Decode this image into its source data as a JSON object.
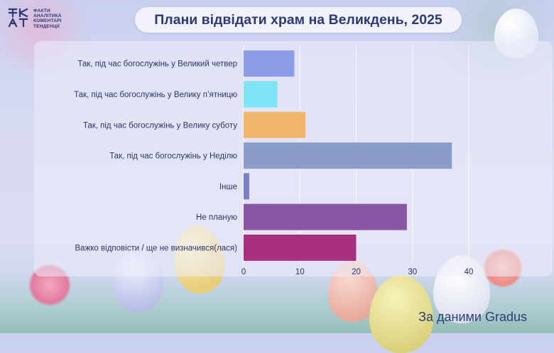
{
  "logo": {
    "mark": "ФАКТ",
    "lines": [
      "ФАКТИ",
      "АНАЛІТИКА",
      "КОМЕНТАРІ",
      "ТЕНДЕНЦІЇ"
    ]
  },
  "chart_data": {
    "type": "bar",
    "orientation": "horizontal",
    "title": "Плани відвідати храм на Великдень, 2025",
    "categories": [
      "Так, під час богослужінь у Великий четвер",
      "Так, під час богослужінь у Велику п’ятницю",
      "Так, під час богослужінь у Велику суботу",
      "Так, під час богослужінь у Неділю",
      "Інше",
      "Не планую",
      "Важко відповісти / ще не визначився(лася)"
    ],
    "values": [
      9,
      6,
      11,
      37,
      1,
      29,
      20
    ],
    "colors": [
      "#8b9be8",
      "#7fe3f7",
      "#f2b66a",
      "#8a9cc9",
      "#7a80c8",
      "#8a55a4",
      "#a8307f"
    ],
    "xlim": [
      0,
      40
    ],
    "xticks": [
      0,
      10,
      20,
      30,
      40
    ],
    "grid": true,
    "legend": false
  },
  "source": "За даними Gradus"
}
